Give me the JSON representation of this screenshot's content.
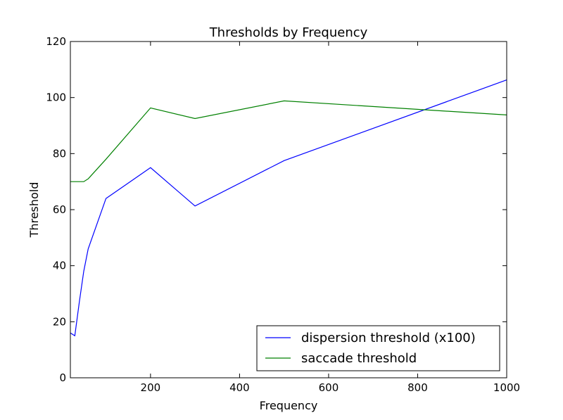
{
  "chart_data": {
    "type": "line",
    "title": "Thresholds by Frequency",
    "xlabel": "Frequency",
    "ylabel": "Threshold",
    "xlim": [
      20,
      1000
    ],
    "ylim": [
      0,
      120
    ],
    "xticks": [
      200,
      400,
      600,
      800,
      1000
    ],
    "yticks": [
      0,
      20,
      40,
      60,
      80,
      100,
      120
    ],
    "grid": false,
    "legend_position": "lower-right",
    "series": [
      {
        "name": "dispersion threshold (x100)",
        "color": "#0000ff",
        "x": [
          20,
          30,
          40,
          50,
          60,
          100,
          200,
          300,
          500,
          1000
        ],
        "y": [
          16,
          15,
          27,
          38,
          46,
          64,
          75,
          61.3,
          77.5,
          106.3
        ]
      },
      {
        "name": "saccade threshold",
        "color": "#008000",
        "x": [
          20,
          30,
          40,
          50,
          60,
          100,
          200,
          300,
          500,
          1000
        ],
        "y": [
          70,
          70,
          70,
          70,
          71,
          78,
          96.3,
          92.5,
          98.8,
          93.8
        ]
      }
    ]
  }
}
